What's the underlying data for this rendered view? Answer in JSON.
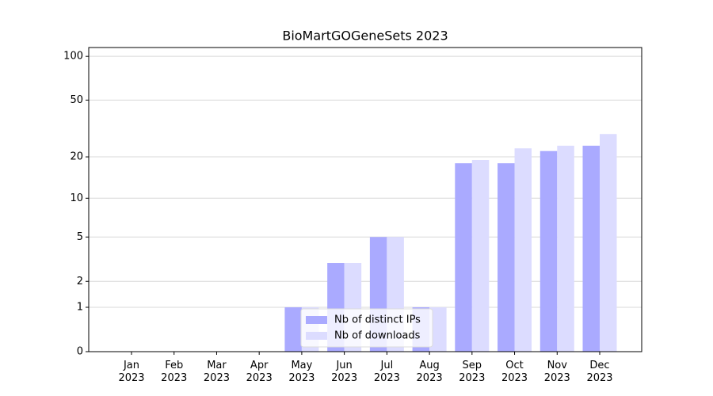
{
  "chart_data": {
    "type": "bar",
    "title": "BioMartGOGeneSets 2023",
    "categories": [
      "Jan 2023",
      "Feb 2023",
      "Mar 2023",
      "Apr 2023",
      "May 2023",
      "Jun 2023",
      "Jul 2023",
      "Aug 2023",
      "Sep 2023",
      "Oct 2023",
      "Nov 2023",
      "Dec 2023"
    ],
    "series": [
      {
        "name": "Nb of distinct IPs",
        "color": "#aaaaff",
        "values": [
          0,
          0,
          0,
          0,
          1,
          3,
          5,
          1,
          18,
          18,
          22,
          24
        ]
      },
      {
        "name": "Nb of downloads",
        "color": "#dcdcff",
        "values": [
          0,
          0,
          0,
          0,
          1,
          3,
          5,
          1,
          19,
          23,
          24,
          29
        ]
      }
    ],
    "ylim": [
      0,
      115
    ],
    "yticks": [
      0,
      1,
      2,
      5,
      10,
      20,
      50,
      100
    ],
    "yscale": "log1p",
    "grid": true,
    "legend": "lower center"
  }
}
